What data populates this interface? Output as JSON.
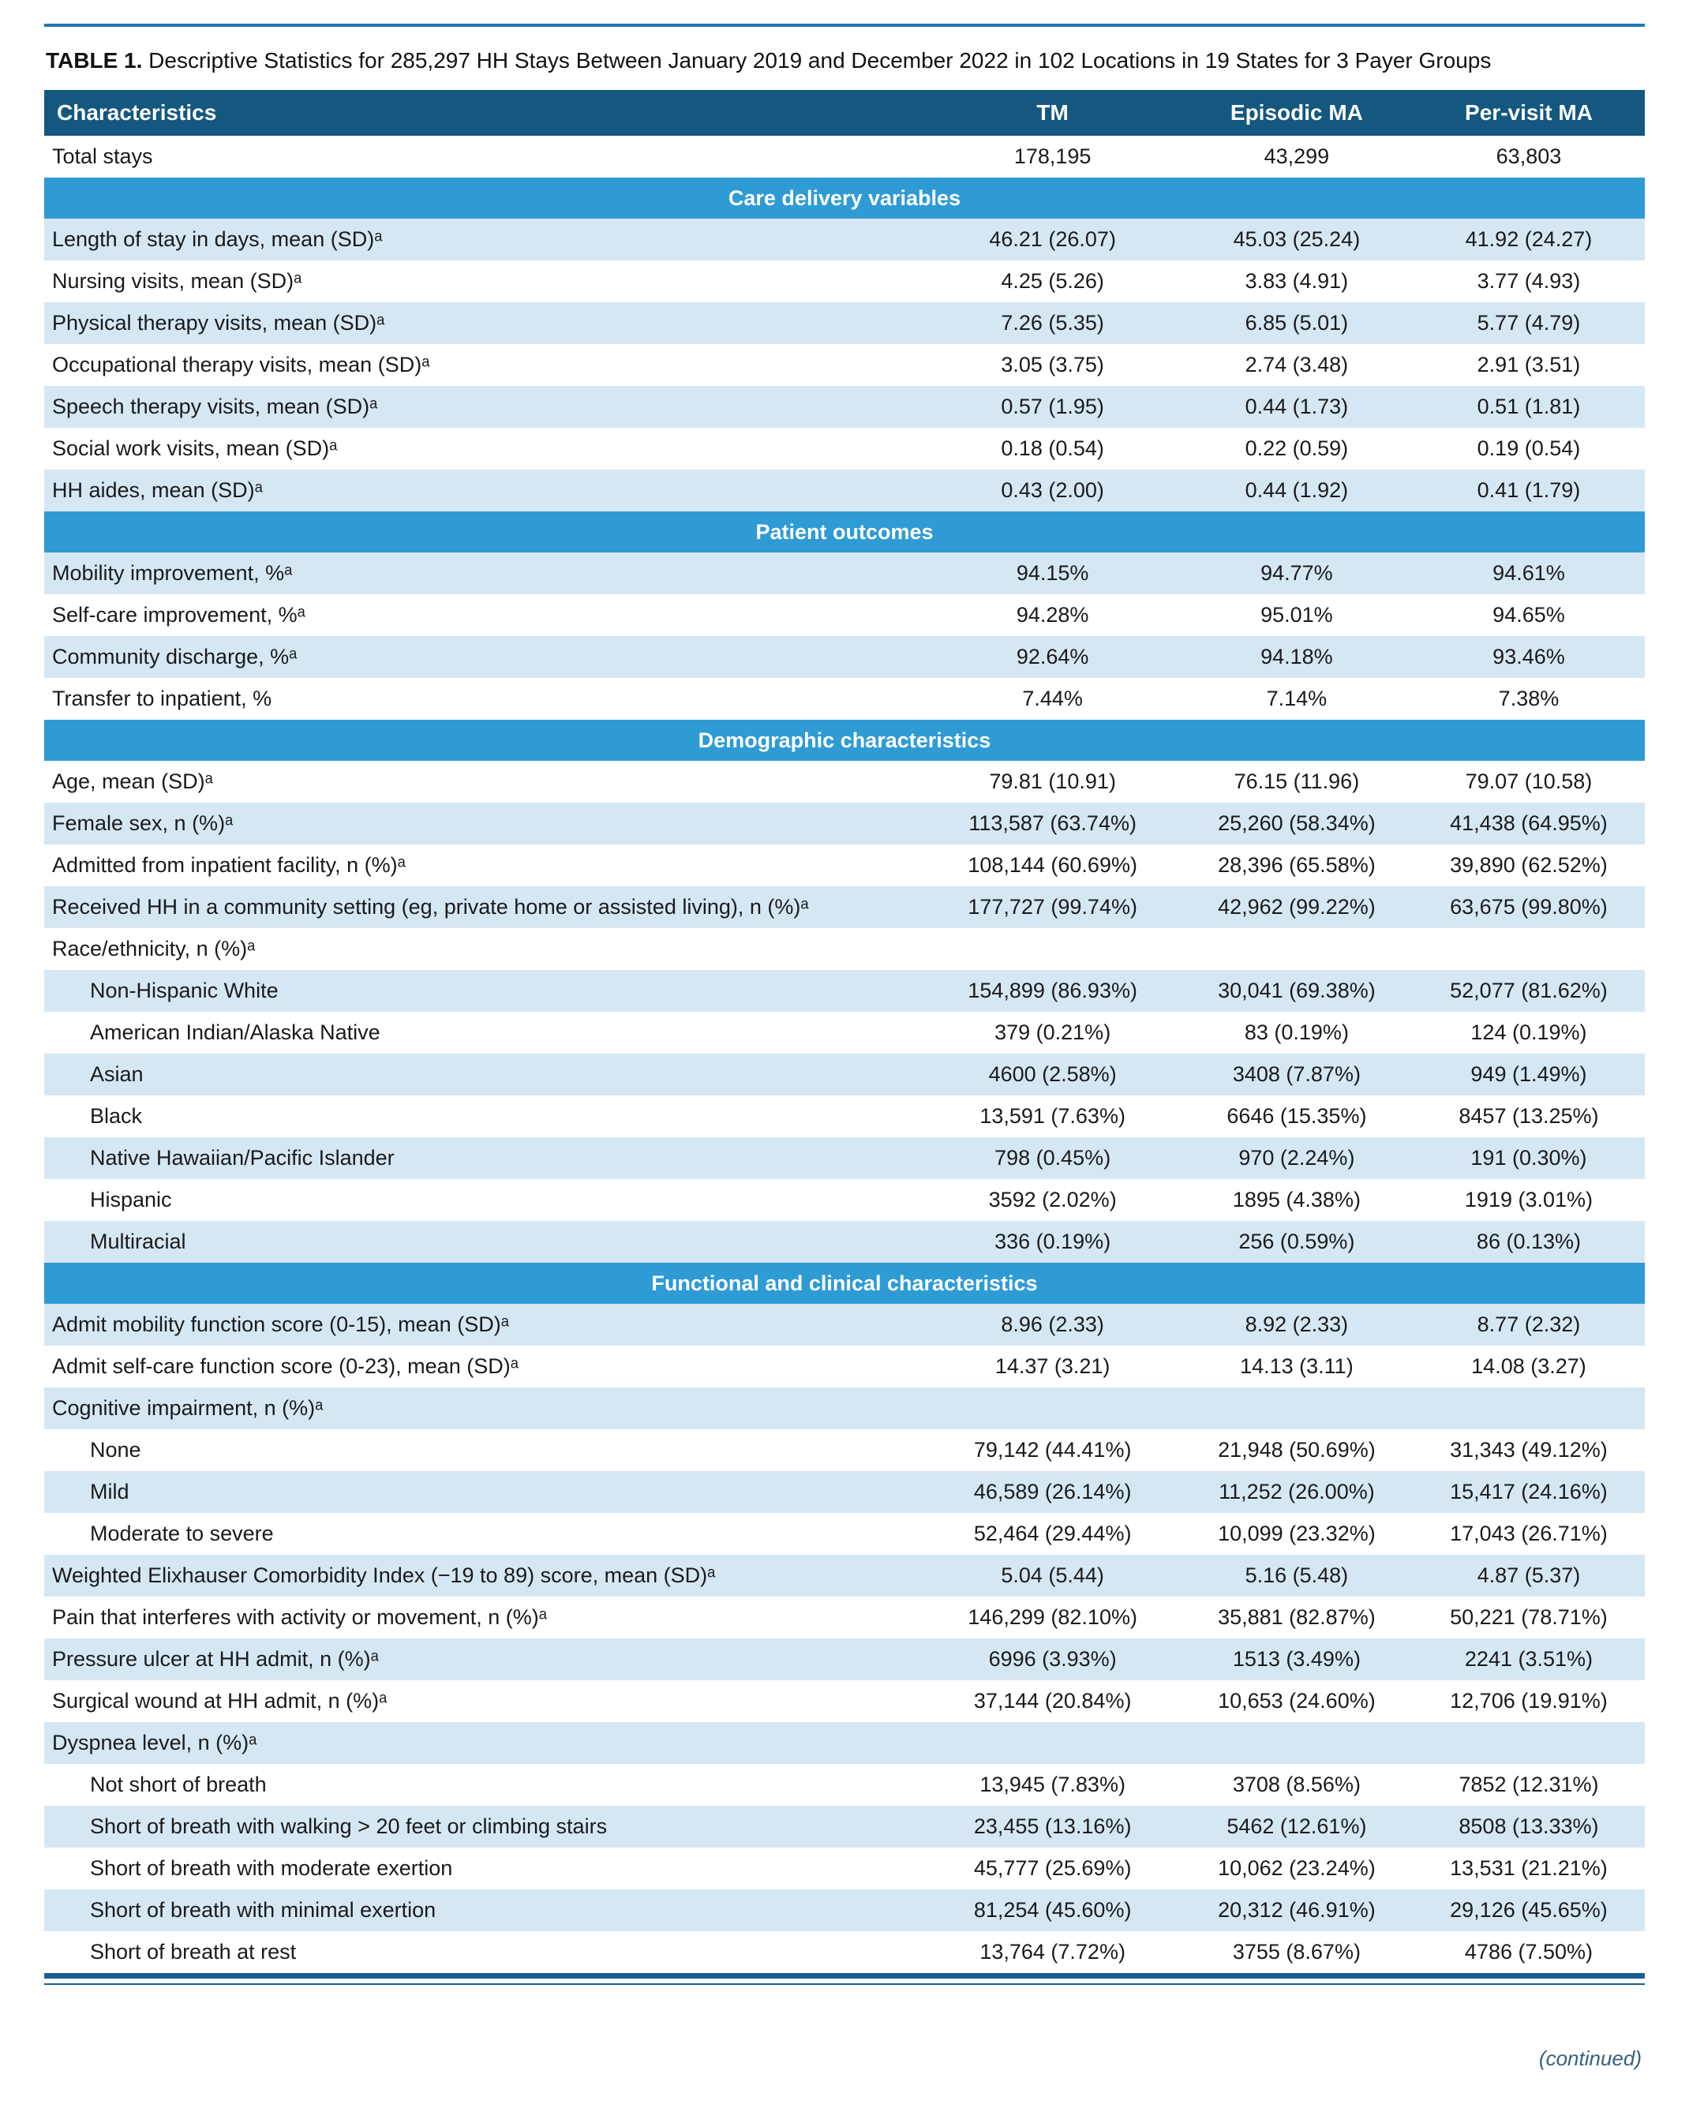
{
  "page": {
    "title_bold": "TABLE 1.",
    "title_rest": " Descriptive Statistics for 285,297 HH Stays Between January 2019 and December 2022 in 102 Locations in 19 States for 3 Payer Groups",
    "continued_note": "(continued)"
  },
  "colors": {
    "header_bg": "#14577f",
    "section_bg": "#2e9bd5",
    "row_alt_bg": "#d6e7f4",
    "rule": "#2176ae",
    "rule_dark": "#1a5e93"
  },
  "table": {
    "columns": [
      "Characteristics",
      "TM",
      "Episodic MA",
      "Per-visit MA"
    ],
    "sections": [
      {
        "header": null,
        "first_row_shaded": false,
        "rows": [
          {
            "label": "Total stays",
            "indent": false,
            "values": [
              "178,195",
              "43,299",
              "63,803"
            ]
          }
        ]
      },
      {
        "header": "Care delivery variables",
        "first_row_shaded": true,
        "rows": [
          {
            "label": "Length of stay in days, mean (SD)ᵃ",
            "indent": false,
            "values": [
              "46.21 (26.07)",
              "45.03 (25.24)",
              "41.92 (24.27)"
            ]
          },
          {
            "label": "Nursing visits, mean (SD)ᵃ",
            "indent": false,
            "values": [
              "4.25 (5.26)",
              "3.83 (4.91)",
              "3.77 (4.93)"
            ]
          },
          {
            "label": "Physical therapy visits, mean (SD)ᵃ",
            "indent": false,
            "values": [
              "7.26 (5.35)",
              "6.85 (5.01)",
              "5.77 (4.79)"
            ]
          },
          {
            "label": "Occupational therapy visits, mean (SD)ᵃ",
            "indent": false,
            "values": [
              "3.05 (3.75)",
              "2.74 (3.48)",
              "2.91 (3.51)"
            ]
          },
          {
            "label": "Speech therapy visits, mean (SD)ᵃ",
            "indent": false,
            "values": [
              "0.57 (1.95)",
              "0.44 (1.73)",
              "0.51 (1.81)"
            ]
          },
          {
            "label": "Social work visits, mean (SD)ᵃ",
            "indent": false,
            "values": [
              "0.18 (0.54)",
              "0.22 (0.59)",
              "0.19 (0.54)"
            ]
          },
          {
            "label": "HH aides, mean (SD)ᵃ",
            "indent": false,
            "values": [
              "0.43 (2.00)",
              "0.44 (1.92)",
              "0.41 (1.79)"
            ]
          }
        ]
      },
      {
        "header": "Patient outcomes",
        "first_row_shaded": true,
        "rows": [
          {
            "label": "Mobility improvement, %ᵃ",
            "indent": false,
            "values": [
              "94.15%",
              "94.77%",
              "94.61%"
            ]
          },
          {
            "label": "Self-care improvement, %ᵃ",
            "indent": false,
            "values": [
              "94.28%",
              "95.01%",
              "94.65%"
            ]
          },
          {
            "label": "Community discharge, %ᵃ",
            "indent": false,
            "values": [
              "92.64%",
              "94.18%",
              "93.46%"
            ]
          },
          {
            "label": "Transfer to inpatient, %",
            "indent": false,
            "values": [
              "7.44%",
              "7.14%",
              "7.38%"
            ]
          }
        ]
      },
      {
        "header": "Demographic characteristics",
        "first_row_shaded": false,
        "rows": [
          {
            "label": "Age, mean (SD)ᵃ",
            "indent": false,
            "values": [
              "79.81 (10.91)",
              "76.15 (11.96)",
              "79.07 (10.58)"
            ]
          },
          {
            "label": "Female sex, n (%)ᵃ",
            "indent": false,
            "values": [
              "113,587 (63.74%)",
              "25,260 (58.34%)",
              "41,438 (64.95%)"
            ]
          },
          {
            "label": "Admitted from inpatient facility, n (%)ᵃ",
            "indent": false,
            "values": [
              "108,144 (60.69%)",
              "28,396 (65.58%)",
              "39,890 (62.52%)"
            ]
          },
          {
            "label": "Received HH in a community setting (eg, private home or assisted living), n (%)ᵃ",
            "indent": false,
            "values": [
              "177,727 (99.74%)",
              "42,962 (99.22%)",
              "63,675 (99.80%)"
            ]
          },
          {
            "label": "Race/ethnicity, n (%)ᵃ",
            "indent": false,
            "values": [
              "",
              "",
              ""
            ]
          },
          {
            "label": "Non-Hispanic White",
            "indent": true,
            "values": [
              "154,899 (86.93%)",
              "30,041 (69.38%)",
              "52,077 (81.62%)"
            ]
          },
          {
            "label": "American Indian/Alaska Native",
            "indent": true,
            "values": [
              "379 (0.21%)",
              "83 (0.19%)",
              "124 (0.19%)"
            ]
          },
          {
            "label": "Asian",
            "indent": true,
            "values": [
              "4600 (2.58%)",
              "3408 (7.87%)",
              "949 (1.49%)"
            ]
          },
          {
            "label": "Black",
            "indent": true,
            "values": [
              "13,591 (7.63%)",
              "6646 (15.35%)",
              "8457 (13.25%)"
            ]
          },
          {
            "label": "Native Hawaiian/Pacific Islander",
            "indent": true,
            "values": [
              "798 (0.45%)",
              "970 (2.24%)",
              "191 (0.30%)"
            ]
          },
          {
            "label": "Hispanic",
            "indent": true,
            "values": [
              "3592 (2.02%)",
              "1895 (4.38%)",
              "1919 (3.01%)"
            ]
          },
          {
            "label": "Multiracial",
            "indent": true,
            "values": [
              "336 (0.19%)",
              "256 (0.59%)",
              "86 (0.13%)"
            ]
          }
        ]
      },
      {
        "header": "Functional and clinical characteristics",
        "first_row_shaded": true,
        "rows": [
          {
            "label": "Admit mobility function score (0-15), mean (SD)ᵃ",
            "indent": false,
            "values": [
              "8.96 (2.33)",
              "8.92 (2.33)",
              "8.77 (2.32)"
            ]
          },
          {
            "label": "Admit self-care function score (0-23), mean (SD)ᵃ",
            "indent": false,
            "values": [
              "14.37 (3.21)",
              "14.13 (3.11)",
              "14.08 (3.27)"
            ]
          },
          {
            "label": "Cognitive impairment, n (%)ᵃ",
            "indent": false,
            "values": [
              "",
              "",
              ""
            ]
          },
          {
            "label": "None",
            "indent": true,
            "values": [
              "79,142 (44.41%)",
              "21,948 (50.69%)",
              "31,343 (49.12%)"
            ]
          },
          {
            "label": "Mild",
            "indent": true,
            "values": [
              "46,589 (26.14%)",
              "11,252 (26.00%)",
              "15,417 (24.16%)"
            ]
          },
          {
            "label": "Moderate to severe",
            "indent": true,
            "values": [
              "52,464 (29.44%)",
              "10,099 (23.32%)",
              "17,043 (26.71%)"
            ]
          },
          {
            "label": "Weighted Elixhauser Comorbidity Index (−19 to 89) score, mean (SD)ᵃ",
            "indent": false,
            "values": [
              "5.04 (5.44)",
              "5.16 (5.48)",
              "4.87 (5.37)"
            ]
          },
          {
            "label": "Pain that interferes with activity or movement, n (%)ᵃ",
            "indent": false,
            "values": [
              "146,299 (82.10%)",
              "35,881 (82.87%)",
              "50,221 (78.71%)"
            ]
          },
          {
            "label": "Pressure ulcer at HH admit, n (%)ᵃ",
            "indent": false,
            "values": [
              "6996 (3.93%)",
              "1513 (3.49%)",
              "2241 (3.51%)"
            ]
          },
          {
            "label": "Surgical wound at HH admit, n (%)ᵃ",
            "indent": false,
            "values": [
              "37,144 (20.84%)",
              "10,653 (24.60%)",
              "12,706 (19.91%)"
            ]
          },
          {
            "label": "Dyspnea level, n (%)ᵃ",
            "indent": false,
            "values": [
              "",
              "",
              ""
            ]
          },
          {
            "label": "Not short of breath",
            "indent": true,
            "values": [
              "13,945 (7.83%)",
              "3708 (8.56%)",
              "7852 (12.31%)"
            ]
          },
          {
            "label": "Short of breath with walking > 20 feet or climbing stairs",
            "indent": true,
            "values": [
              "23,455 (13.16%)",
              "5462 (12.61%)",
              "8508 (13.33%)"
            ]
          },
          {
            "label": "Short of breath with moderate exertion",
            "indent": true,
            "values": [
              "45,777 (25.69%)",
              "10,062 (23.24%)",
              "13,531 (21.21%)"
            ]
          },
          {
            "label": "Short of breath with minimal exertion",
            "indent": true,
            "values": [
              "81,254 (45.60%)",
              "20,312 (46.91%)",
              "29,126 (45.65%)"
            ]
          },
          {
            "label": "Short of breath at rest",
            "indent": true,
            "values": [
              "13,764 (7.72%)",
              "3755 (8.67%)",
              "4786 (7.50%)"
            ]
          }
        ]
      }
    ]
  }
}
